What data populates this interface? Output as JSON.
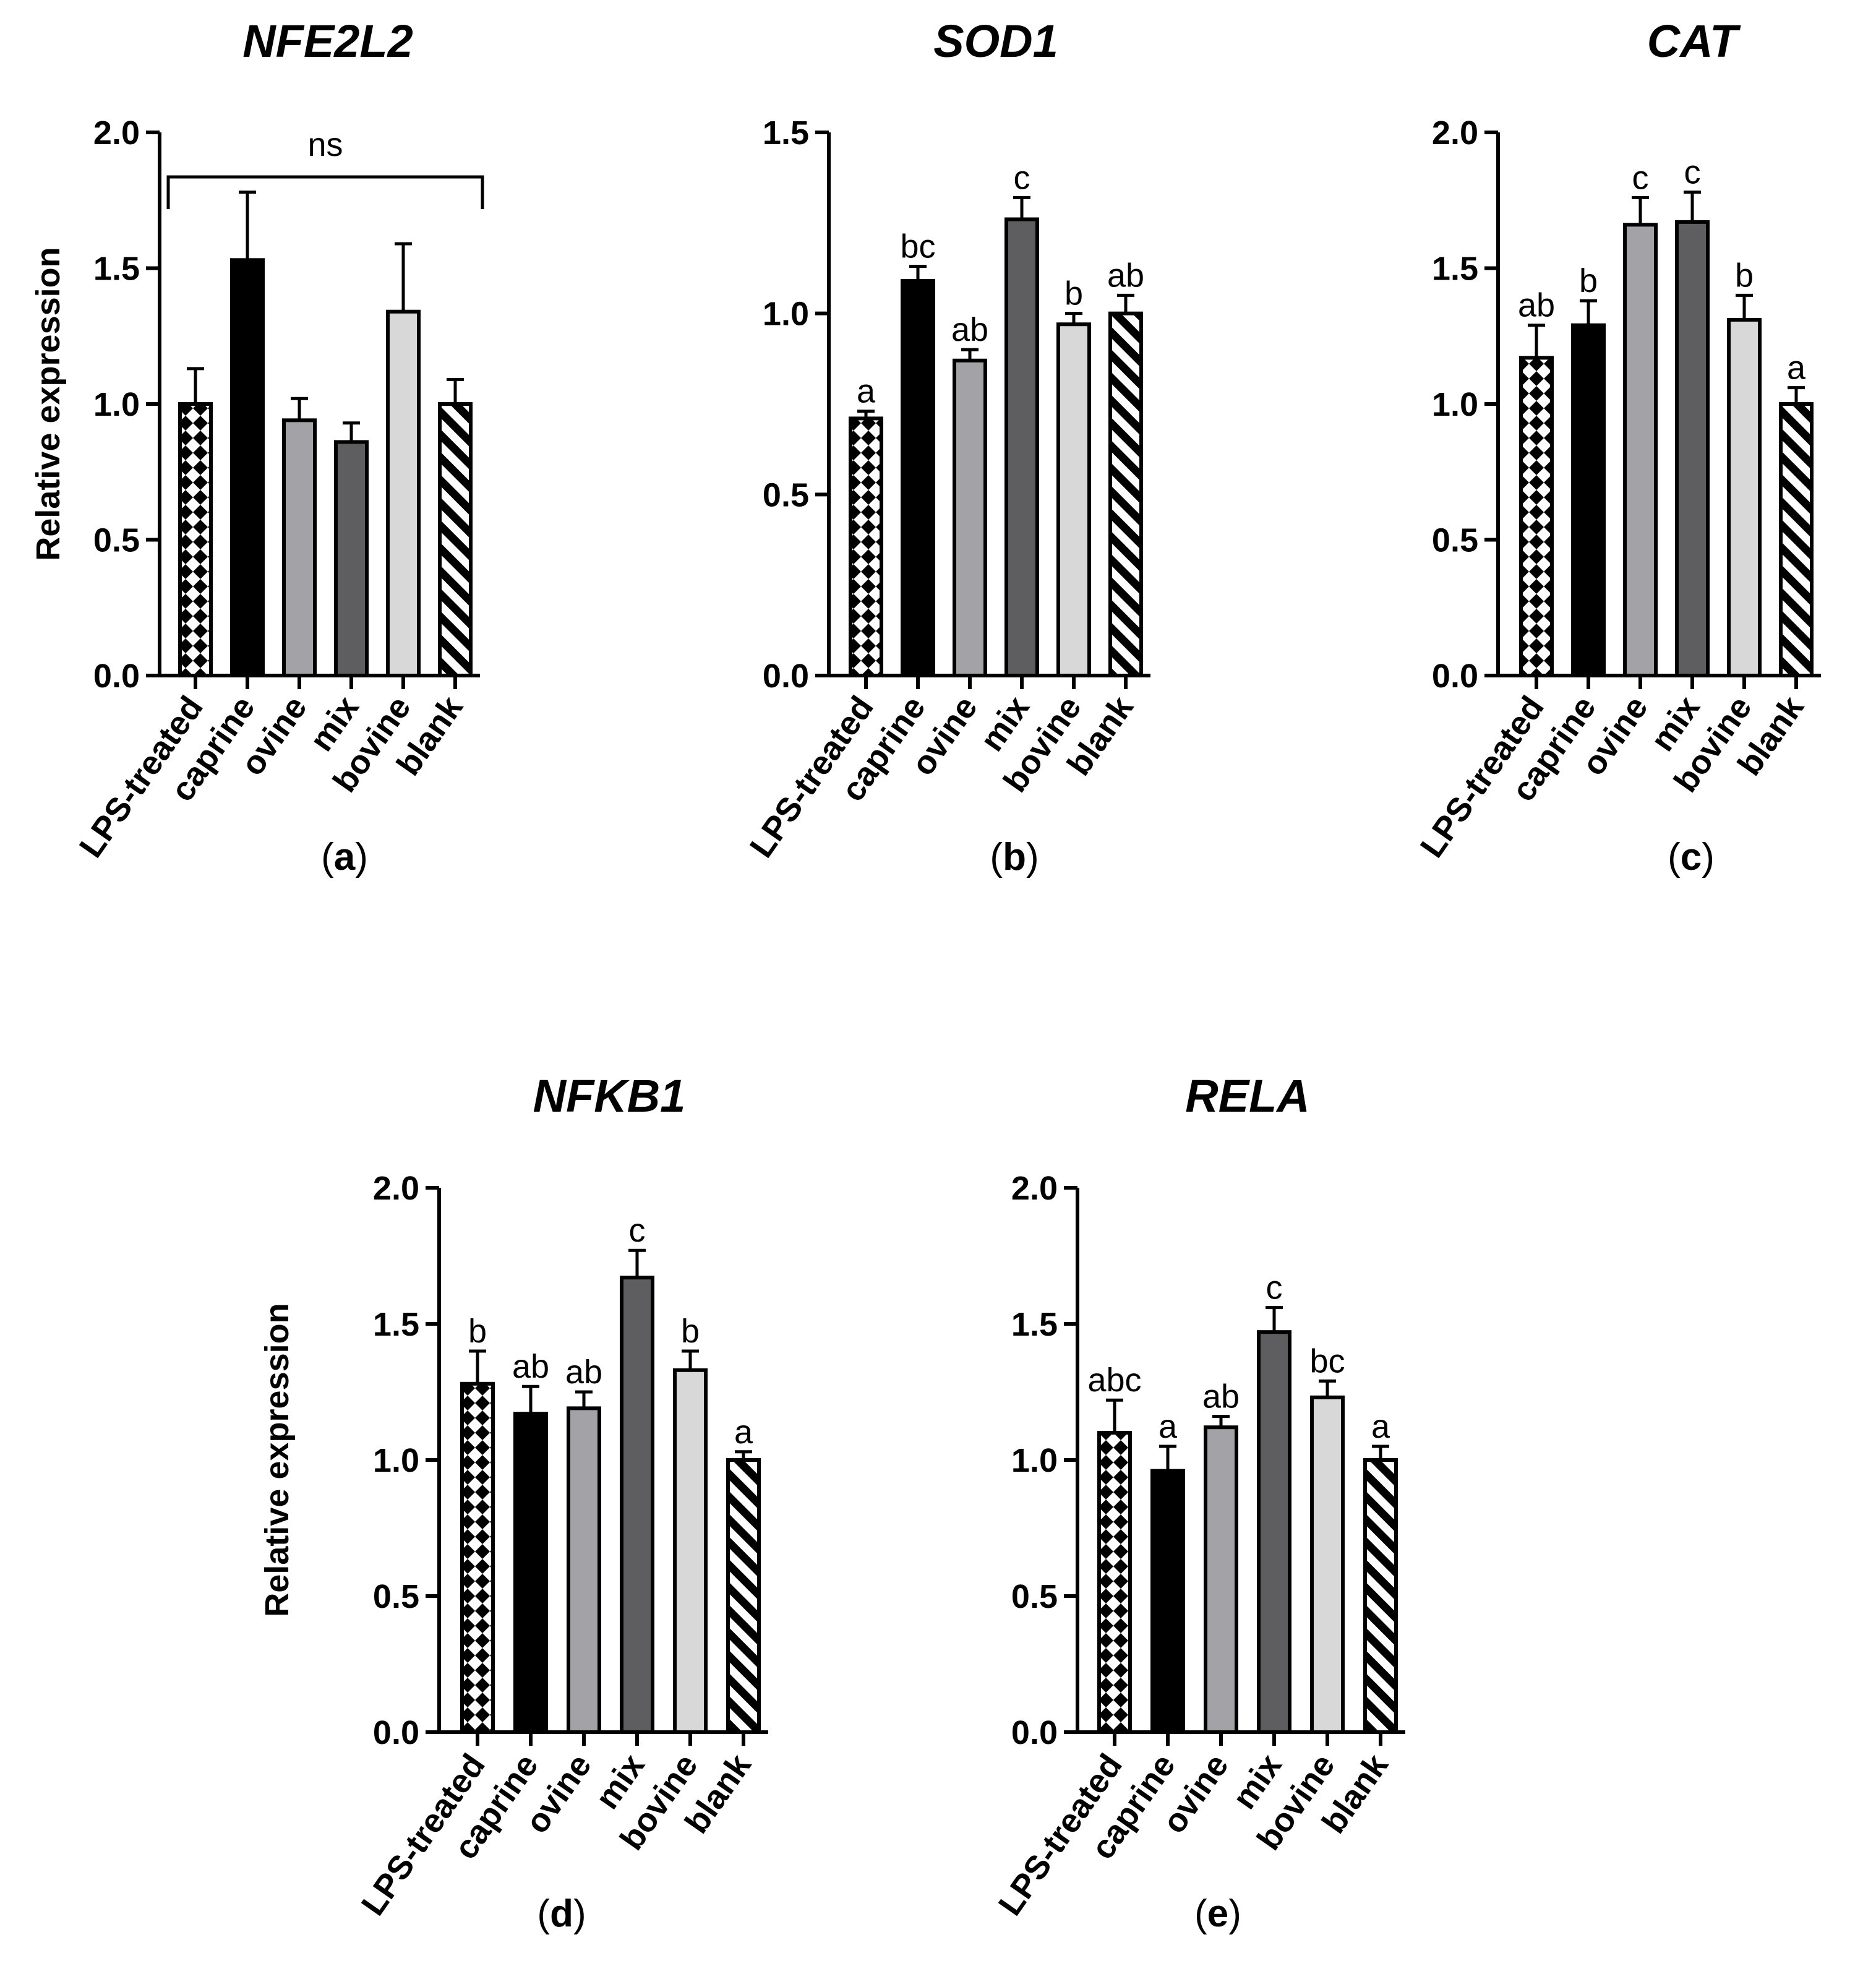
{
  "chart_data": [
    {
      "type": "bar",
      "panel": "a",
      "title": "NFE2L2",
      "ylabel": "Relative expression",
      "ylim": [
        0,
        2.0
      ],
      "yticks": [
        "0.0",
        "0.5",
        "1.0",
        "1.5",
        "2.0"
      ],
      "categories": [
        "LPS-treated",
        "caprine",
        "ovine",
        "mix",
        "bovine",
        "blank"
      ],
      "values": [
        1.0,
        1.53,
        0.94,
        0.86,
        1.34,
        1.0
      ],
      "errors": [
        0.13,
        0.25,
        0.08,
        0.07,
        0.25,
        0.09
      ],
      "significance": [
        "",
        "",
        "",
        "",
        "",
        ""
      ],
      "bracket_label": "ns"
    },
    {
      "type": "bar",
      "panel": "b",
      "title": "SOD1",
      "ylabel": "",
      "ylim": [
        0,
        1.5
      ],
      "yticks": [
        "0.0",
        "0.5",
        "1.0",
        "1.5"
      ],
      "categories": [
        "LPS-treated",
        "caprine",
        "ovine",
        "mix",
        "bovine",
        "blank"
      ],
      "values": [
        0.71,
        1.09,
        0.87,
        1.26,
        0.97,
        1.0
      ],
      "errors": [
        0.02,
        0.04,
        0.03,
        0.06,
        0.03,
        0.05
      ],
      "significance": [
        "a",
        "bc",
        "ab",
        "c",
        "b",
        "ab"
      ]
    },
    {
      "type": "bar",
      "panel": "c",
      "title": "CAT",
      "ylabel": "",
      "ylim": [
        0,
        2.0
      ],
      "yticks": [
        "0.0",
        "0.5",
        "1.0",
        "1.5",
        "2.0"
      ],
      "categories": [
        "LPS-treated",
        "caprine",
        "ovine",
        "mix",
        "bovine",
        "blank"
      ],
      "values": [
        1.17,
        1.29,
        1.66,
        1.67,
        1.31,
        1.0
      ],
      "errors": [
        0.12,
        0.09,
        0.1,
        0.11,
        0.09,
        0.06
      ],
      "significance": [
        "ab",
        "b",
        "c",
        "c",
        "b",
        "a"
      ]
    },
    {
      "type": "bar",
      "panel": "d",
      "title": "NFKB1",
      "ylabel": "Relative expression",
      "ylim": [
        0,
        2.0
      ],
      "yticks": [
        "0.0",
        "0.5",
        "1.0",
        "1.5",
        "2.0"
      ],
      "categories": [
        "LPS-treated",
        "caprine",
        "ovine",
        "mix",
        "bovine",
        "blank"
      ],
      "values": [
        1.28,
        1.17,
        1.19,
        1.67,
        1.33,
        1.0
      ],
      "errors": [
        0.12,
        0.1,
        0.06,
        0.1,
        0.07,
        0.03
      ],
      "significance": [
        "b",
        "ab",
        "ab",
        "c",
        "b",
        "a"
      ]
    },
    {
      "type": "bar",
      "panel": "e",
      "title": "RELA",
      "ylabel": "",
      "ylim": [
        0,
        2.0
      ],
      "yticks": [
        "0.0",
        "0.5",
        "1.0",
        "1.5",
        "2.0"
      ],
      "categories": [
        "LPS-treated",
        "caprine",
        "ovine",
        "mix",
        "bovine",
        "blank"
      ],
      "values": [
        1.1,
        0.96,
        1.12,
        1.47,
        1.23,
        1.0
      ],
      "errors": [
        0.12,
        0.09,
        0.04,
        0.09,
        0.06,
        0.05
      ],
      "significance": [
        "abc",
        "a",
        "ab",
        "c",
        "bc",
        "a"
      ]
    }
  ],
  "colors": {
    "caprine": "#000000",
    "ovine": "#a3a3a7",
    "mix": "#5e5e60",
    "bovine": "#d8d8d8",
    "outline": "#000000"
  }
}
